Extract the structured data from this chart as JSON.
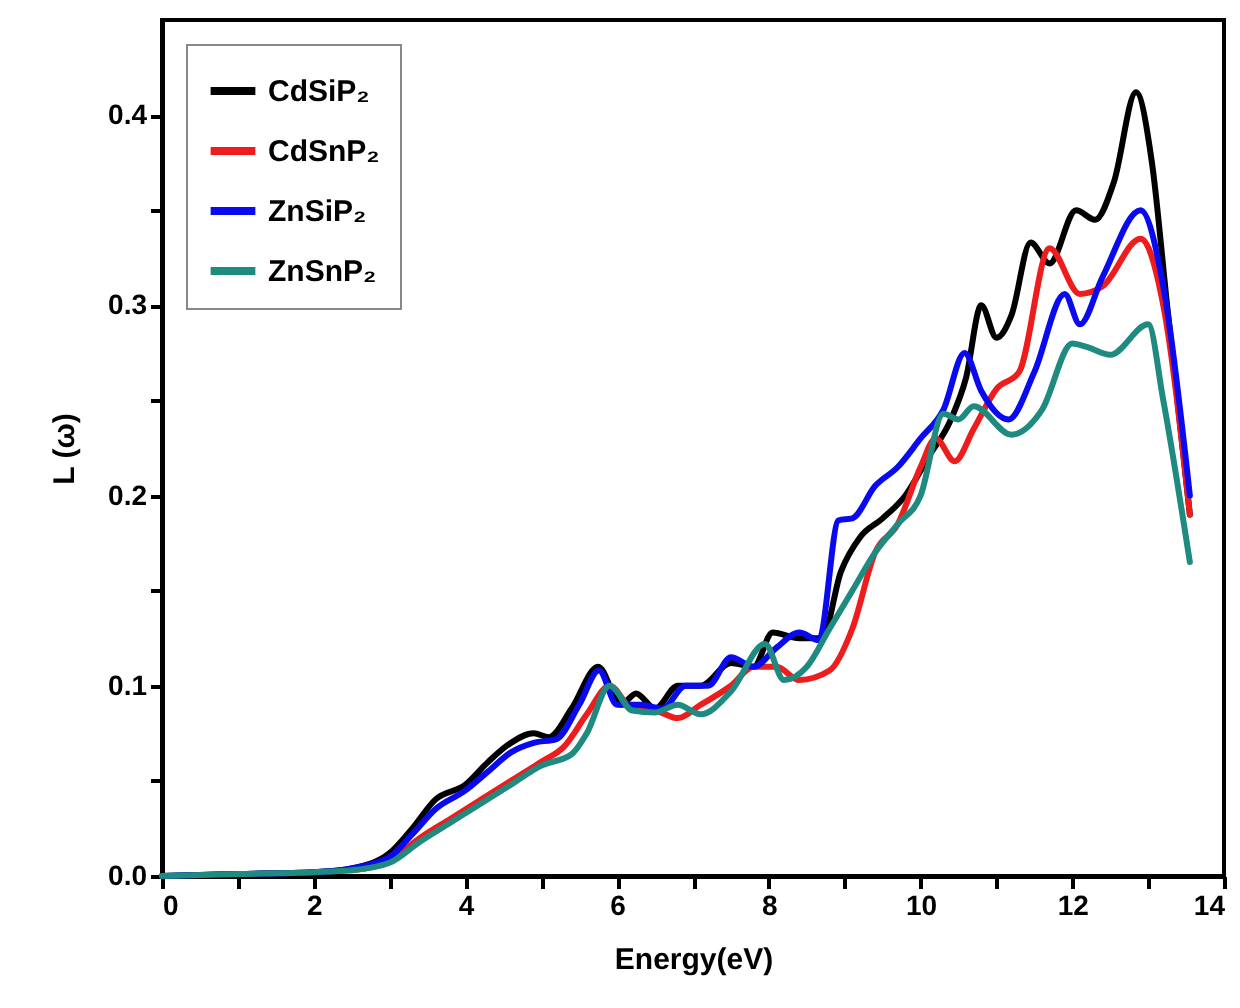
{
  "chart_data": {
    "type": "line",
    "xlabel": "Energy(eV)",
    "ylabel": "L (ω)",
    "xlim": [
      0,
      14
    ],
    "ylim": [
      0,
      0.45
    ],
    "xticks": [
      0,
      {
        "value": 1,
        "label": null
      },
      2,
      {
        "value": 3,
        "label": null
      },
      4,
      {
        "value": 5,
        "label": null
      },
      6,
      {
        "value": 7,
        "label": null
      },
      8,
      {
        "value": 9,
        "label": null
      },
      10,
      {
        "value": 11,
        "label": null
      },
      12,
      {
        "value": 13,
        "label": null
      },
      14
    ],
    "yticks": [
      {
        "value": 0,
        "label": "0.0"
      },
      {
        "value": 0.05,
        "label": null
      },
      {
        "value": 0.1,
        "label": "0.1"
      },
      {
        "value": 0.15,
        "label": null
      },
      {
        "value": 0.2,
        "label": "0.2"
      },
      {
        "value": 0.25,
        "label": null
      },
      {
        "value": 0.3,
        "label": "0.3"
      },
      {
        "value": 0.35,
        "label": null
      },
      {
        "value": 0.4,
        "label": "0.4"
      }
    ],
    "grid": false,
    "legend": "top left",
    "line_style": "solid",
    "marker": "none",
    "series": [
      {
        "name": "CdSiP₂",
        "color": "#000000",
        "x": [
          0,
          1,
          2,
          2.5,
          3,
          3.3,
          3.6,
          4,
          4.3,
          4.6,
          4.9,
          5.1,
          5.4,
          5.75,
          6.05,
          6.25,
          6.5,
          6.8,
          7.1,
          7.5,
          7.8,
          8.05,
          8.4,
          8.7,
          8.95,
          9.2,
          9.5,
          9.8,
          10.1,
          10.4,
          10.6,
          10.8,
          11.0,
          11.2,
          11.45,
          11.7,
          12.05,
          12.3,
          12.55,
          12.84,
          13.05,
          13.25,
          13.55
        ],
        "values": [
          0,
          0.001,
          0.002,
          0.004,
          0.012,
          0.025,
          0.04,
          0.048,
          0.06,
          0.07,
          0.075,
          0.073,
          0.088,
          0.11,
          0.09,
          0.096,
          0.088,
          0.1,
          0.1,
          0.112,
          0.11,
          0.128,
          0.125,
          0.125,
          0.16,
          0.178,
          0.188,
          0.2,
          0.22,
          0.24,
          0.262,
          0.3,
          0.283,
          0.295,
          0.333,
          0.322,
          0.35,
          0.345,
          0.365,
          0.412,
          0.375,
          0.3,
          0.19
        ]
      },
      {
        "name": "CdSnP₂",
        "color": "#ee1c1c",
        "x": [
          2.5,
          3,
          3.4,
          3.8,
          4.2,
          4.6,
          5.0,
          5.3,
          5.6,
          5.9,
          6.2,
          6.5,
          6.8,
          7.1,
          7.5,
          7.8,
          8.1,
          8.4,
          8.8,
          9.1,
          9.4,
          9.7,
          10.0,
          10.2,
          10.45,
          10.7,
          11.0,
          11.3,
          11.7,
          12.1,
          12.4,
          12.9,
          13.2,
          13.55
        ],
        "values": [
          0.003,
          0.008,
          0.02,
          0.03,
          0.04,
          0.05,
          0.06,
          0.068,
          0.085,
          0.1,
          0.088,
          0.087,
          0.083,
          0.09,
          0.1,
          0.11,
          0.11,
          0.103,
          0.108,
          0.13,
          0.17,
          0.185,
          0.215,
          0.23,
          0.218,
          0.235,
          0.256,
          0.265,
          0.33,
          0.306,
          0.31,
          0.335,
          0.3,
          0.19
        ]
      },
      {
        "name": "ZnSiP₂",
        "color": "#0a0af0",
        "x": [
          0,
          1,
          2,
          2.5,
          3,
          3.3,
          3.6,
          4,
          4.3,
          4.6,
          4.9,
          5.2,
          5.5,
          5.76,
          6.0,
          6.3,
          6.6,
          6.9,
          7.2,
          7.5,
          7.8,
          8.1,
          8.4,
          8.66,
          8.92,
          9.1,
          9.4,
          9.7,
          10.0,
          10.3,
          10.58,
          10.8,
          11.16,
          11.5,
          11.9,
          12.1,
          12.4,
          12.9,
          13.2,
          13.55
        ],
        "values": [
          0,
          0.001,
          0.002,
          0.004,
          0.01,
          0.022,
          0.035,
          0.045,
          0.055,
          0.065,
          0.07,
          0.072,
          0.09,
          0.108,
          0.09,
          0.09,
          0.088,
          0.1,
          0.1,
          0.115,
          0.11,
          0.12,
          0.128,
          0.124,
          0.187,
          0.188,
          0.205,
          0.215,
          0.23,
          0.245,
          0.275,
          0.255,
          0.24,
          0.265,
          0.306,
          0.29,
          0.315,
          0.35,
          0.31,
          0.2
        ]
      },
      {
        "name": "ZnSnP₂",
        "color": "#1f8a80",
        "x": [
          0,
          1,
          2,
          2.5,
          3,
          3.4,
          3.8,
          4.2,
          4.6,
          5.0,
          5.4,
          5.6,
          5.9,
          6.2,
          6.5,
          6.8,
          7.1,
          7.5,
          7.95,
          8.2,
          8.5,
          8.8,
          9.1,
          9.4,
          9.7,
          10.0,
          10.3,
          10.5,
          10.7,
          11.2,
          11.6,
          12.0,
          12.2,
          12.5,
          13.0,
          13.2,
          13.55
        ],
        "values": [
          0,
          0.001,
          0.002,
          0.003,
          0.007,
          0.018,
          0.028,
          0.038,
          0.048,
          0.058,
          0.064,
          0.075,
          0.1,
          0.087,
          0.086,
          0.09,
          0.085,
          0.097,
          0.122,
          0.103,
          0.11,
          0.13,
          0.15,
          0.17,
          0.185,
          0.2,
          0.243,
          0.24,
          0.247,
          0.232,
          0.245,
          0.28,
          0.278,
          0.274,
          0.29,
          0.25,
          0.165
        ]
      }
    ]
  }
}
